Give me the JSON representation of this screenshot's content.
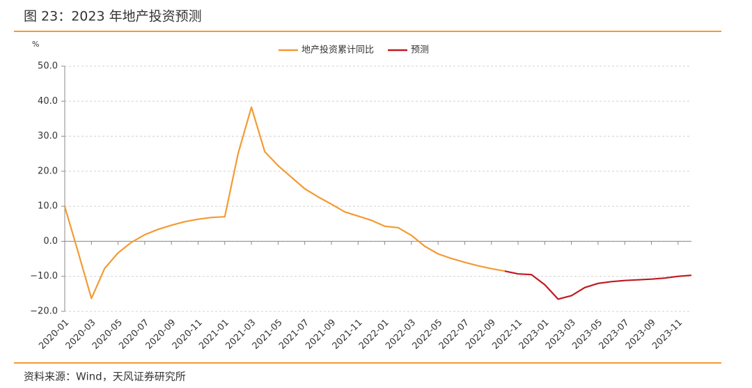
{
  "chart_data": {
    "type": "line",
    "title": "图 23：2023 年地产投资预测",
    "y_label": "%",
    "source": "资料来源：Wind，天风证券研究所",
    "categories": [
      "2020-01",
      null,
      "2020-03",
      null,
      "2020-05",
      null,
      "2020-07",
      null,
      "2020-09",
      null,
      "2020-11",
      null,
      "2021-01",
      null,
      "2021-03",
      null,
      "2021-05",
      null,
      "2021-07",
      null,
      "2021-09",
      null,
      "2021-11",
      null,
      "2022-01",
      null,
      "2022-03",
      null,
      "2022-05",
      null,
      "2022-07",
      null,
      "2022-09",
      null,
      "2022-11",
      null,
      "2023-01",
      null,
      "2023-03",
      null,
      "2023-05",
      null,
      "2023-07",
      null,
      "2023-09",
      null,
      "2023-11",
      null
    ],
    "series": [
      {
        "name": "地产投资累计同比",
        "color": "#f39a32",
        "values": [
          9.9,
          -3.0,
          -16.3,
          -7.7,
          -3.3,
          -0.3,
          1.9,
          3.4,
          4.6,
          5.6,
          6.3,
          6.8,
          7.0,
          25.0,
          38.3,
          25.6,
          21.6,
          18.3,
          15.0,
          12.7,
          10.6,
          8.4,
          7.2,
          6.0,
          4.3,
          3.9,
          1.7,
          -1.4,
          -3.6,
          -4.9,
          -6.0,
          -7.0,
          -7.8,
          -8.5,
          null,
          null,
          null,
          null,
          null,
          null,
          null,
          null,
          null,
          null,
          null,
          null,
          null,
          null
        ]
      },
      {
        "name": "预测",
        "color": "#c0181f",
        "values": [
          null,
          null,
          null,
          null,
          null,
          null,
          null,
          null,
          null,
          null,
          null,
          null,
          null,
          null,
          null,
          null,
          null,
          null,
          null,
          null,
          null,
          null,
          null,
          null,
          null,
          null,
          null,
          null,
          null,
          null,
          null,
          null,
          null,
          -8.5,
          -9.3,
          -9.5,
          -12.4,
          -16.5,
          -15.5,
          -13.2,
          -12.0,
          -11.5,
          -11.2,
          -11.0,
          -10.8,
          -10.5,
          -10.0,
          -9.7
        ]
      }
    ],
    "ylim": [
      -20,
      50
    ],
    "yticks": [
      {
        "value": -20,
        "label": "−20.0"
      },
      {
        "value": -10,
        "label": "−10.0"
      },
      {
        "value": 0,
        "label": "0.0"
      },
      {
        "value": 10,
        "label": "10.0"
      },
      {
        "value": 20,
        "label": "20.0"
      },
      {
        "value": 30,
        "label": "30.0"
      },
      {
        "value": 40,
        "label": "40.0"
      },
      {
        "value": 50,
        "label": "50.0"
      }
    ],
    "grid": true,
    "legend": "top"
  }
}
